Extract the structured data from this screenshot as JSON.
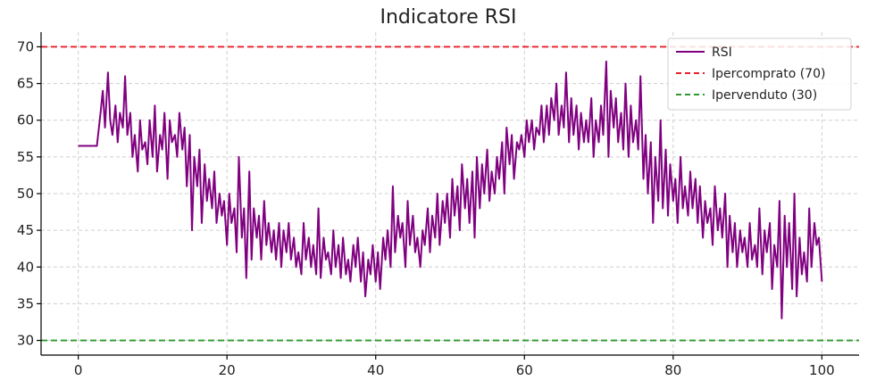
{
  "chart_data": {
    "type": "line",
    "title": "Indicatore RSI",
    "xlabel": "",
    "ylabel": "",
    "xlim": [
      -5,
      105
    ],
    "ylim": [
      28,
      72
    ],
    "xticks": [
      0,
      20,
      40,
      60,
      80,
      100
    ],
    "yticks": [
      30,
      35,
      40,
      45,
      50,
      55,
      60,
      65,
      70
    ],
    "grid": true,
    "legend_position": "top-right",
    "series": [
      {
        "name": "RSI",
        "color": "#800080",
        "style": "solid",
        "x": [
          0,
          0.5,
          1,
          1.5,
          2,
          2.5,
          3,
          3.3,
          3.6,
          4,
          4.3,
          4.6,
          5,
          5.3,
          5.6,
          6,
          6.3,
          6.6,
          7,
          7.3,
          7.6,
          8,
          8.3,
          8.6,
          9,
          9.3,
          9.6,
          10,
          10.3,
          10.6,
          11,
          11.3,
          11.6,
          12,
          12.3,
          12.6,
          13,
          13.3,
          13.6,
          14,
          14.3,
          14.6,
          15,
          15.3,
          15.6,
          16,
          16.3,
          16.6,
          17,
          17.3,
          17.6,
          18,
          18.3,
          18.6,
          19,
          19.3,
          19.6,
          20,
          20.3,
          20.6,
          21,
          21.3,
          21.6,
          22,
          22.3,
          22.6,
          23,
          23.3,
          23.6,
          24,
          24.3,
          24.6,
          25,
          25.3,
          25.6,
          26,
          26.3,
          26.6,
          27,
          27.3,
          27.6,
          28,
          28.3,
          28.6,
          29,
          29.3,
          29.6,
          30,
          30.3,
          30.6,
          31,
          31.3,
          31.6,
          32,
          32.3,
          32.6,
          33,
          33.3,
          33.6,
          34,
          34.3,
          34.6,
          35,
          35.3,
          35.6,
          36,
          36.3,
          36.6,
          37,
          37.3,
          37.6,
          38,
          38.3,
          38.6,
          39,
          39.3,
          39.6,
          40,
          40.3,
          40.6,
          41,
          41.3,
          41.6,
          42,
          42.3,
          42.6,
          43,
          43.3,
          43.6,
          44,
          44.3,
          44.6,
          45,
          45.3,
          45.6,
          46,
          46.3,
          46.6,
          47,
          47.3,
          47.6,
          48,
          48.3,
          48.6,
          49,
          49.3,
          49.6,
          50,
          50.3,
          50.6,
          51,
          51.3,
          51.6,
          52,
          52.3,
          52.6,
          53,
          53.3,
          53.6,
          54,
          54.3,
          54.6,
          55,
          55.3,
          55.6,
          56,
          56.3,
          56.6,
          57,
          57.3,
          57.6,
          58,
          58.3,
          58.6,
          59,
          59.3,
          59.6,
          60,
          60.3,
          60.6,
          61,
          61.3,
          61.6,
          62,
          62.3,
          62.6,
          63,
          63.3,
          63.6,
          64,
          64.3,
          64.6,
          65,
          65.3,
          65.6,
          66,
          66.3,
          66.6,
          67,
          67.3,
          67.6,
          68,
          68.3,
          68.6,
          69,
          69.3,
          69.6,
          70,
          70.3,
          70.6,
          71,
          71.3,
          71.6,
          72,
          72.3,
          72.6,
          73,
          73.3,
          73.6,
          74,
          74.3,
          74.6,
          75,
          75.3,
          75.6,
          76,
          76.3,
          76.6,
          77,
          77.3,
          77.6,
          78,
          78.3,
          78.6,
          79,
          79.3,
          79.6,
          80,
          80.3,
          80.6,
          81,
          81.3,
          81.6,
          82,
          82.3,
          82.6,
          83,
          83.3,
          83.6,
          84,
          84.3,
          84.6,
          85,
          85.3,
          85.6,
          86,
          86.3,
          86.6,
          87,
          87.3,
          87.6,
          88,
          88.3,
          88.6,
          89,
          89.3,
          89.6,
          90,
          90.3,
          90.6,
          91,
          91.3,
          91.6,
          92,
          92.3,
          92.6,
          93,
          93.3,
          93.6,
          94,
          94.3,
          94.6,
          95,
          95.3,
          95.6,
          96,
          96.3,
          96.6,
          97,
          97.3,
          97.6,
          98,
          98.3,
          98.6,
          99,
          99.3,
          99.6,
          100
        ],
        "y": [
          56.5,
          56.5,
          56.5,
          56.5,
          56.5,
          56.5,
          61,
          64,
          59,
          66.5,
          60,
          58,
          62,
          57,
          61,
          59,
          66,
          58,
          61,
          55,
          58,
          53,
          60,
          56,
          57,
          54,
          60,
          55,
          62,
          53,
          58,
          56,
          61,
          52,
          60,
          57,
          58,
          55,
          61,
          56,
          59,
          51,
          58,
          45,
          55,
          51,
          56,
          46,
          54,
          49,
          52,
          48,
          53,
          46,
          50,
          47,
          49,
          43,
          50,
          46,
          48,
          42,
          55,
          44,
          48,
          38.5,
          53,
          41,
          48,
          44,
          47,
          41,
          49,
          43,
          46,
          42,
          45,
          41,
          46,
          40,
          45,
          42,
          46,
          41,
          44,
          40,
          42,
          39,
          46,
          41,
          44,
          40,
          43,
          39,
          48,
          38.5,
          44,
          41,
          42,
          39,
          45,
          40,
          43,
          38.5,
          44,
          39,
          41,
          38,
          43,
          40,
          44,
          38,
          42,
          36,
          41,
          39,
          43,
          38,
          42,
          37,
          44,
          41,
          45,
          40,
          51,
          42,
          47,
          44,
          46,
          40,
          49,
          43,
          47,
          42,
          44,
          40,
          45,
          43,
          48,
          42,
          47,
          44,
          50,
          43,
          49,
          46,
          50,
          44,
          52,
          47,
          51,
          45,
          54,
          48,
          52,
          46,
          53,
          44,
          55,
          48,
          54,
          50,
          56,
          49,
          53,
          50,
          55,
          52,
          57,
          50,
          59,
          54,
          58,
          52,
          57,
          56,
          58,
          55,
          60,
          57,
          60,
          56,
          59,
          58,
          62,
          57,
          62,
          58,
          63,
          60,
          65,
          58,
          62,
          59,
          66.5,
          57,
          63,
          58,
          62,
          56,
          61,
          57,
          60,
          57,
          63,
          55,
          60,
          57,
          62,
          58,
          68,
          55,
          64,
          59,
          63,
          57,
          61,
          56,
          65,
          55,
          62,
          57,
          60,
          56,
          66,
          52,
          58,
          50,
          57,
          46,
          55,
          49,
          60,
          48,
          56,
          47,
          54,
          49,
          52,
          46,
          55,
          48,
          51,
          47,
          53,
          48,
          52,
          46,
          51,
          44,
          49,
          46,
          48,
          43,
          51,
          45,
          48,
          44,
          50,
          40,
          47,
          42,
          46,
          40,
          45,
          42,
          44,
          40,
          46,
          41,
          43,
          40,
          48,
          39,
          45,
          42,
          46,
          37,
          43,
          40,
          49,
          33,
          47,
          40,
          46,
          37,
          50,
          36,
          44,
          39,
          42,
          38,
          48,
          40,
          46,
          43,
          44,
          38
        ]
      },
      {
        "name": "Ipercomprato (70)",
        "color": "#e8202a",
        "style": "dashed",
        "level": 70
      },
      {
        "name": "Ipervenduto (30)",
        "color": "#2e9a2e",
        "style": "dashed",
        "level": 30
      }
    ]
  }
}
